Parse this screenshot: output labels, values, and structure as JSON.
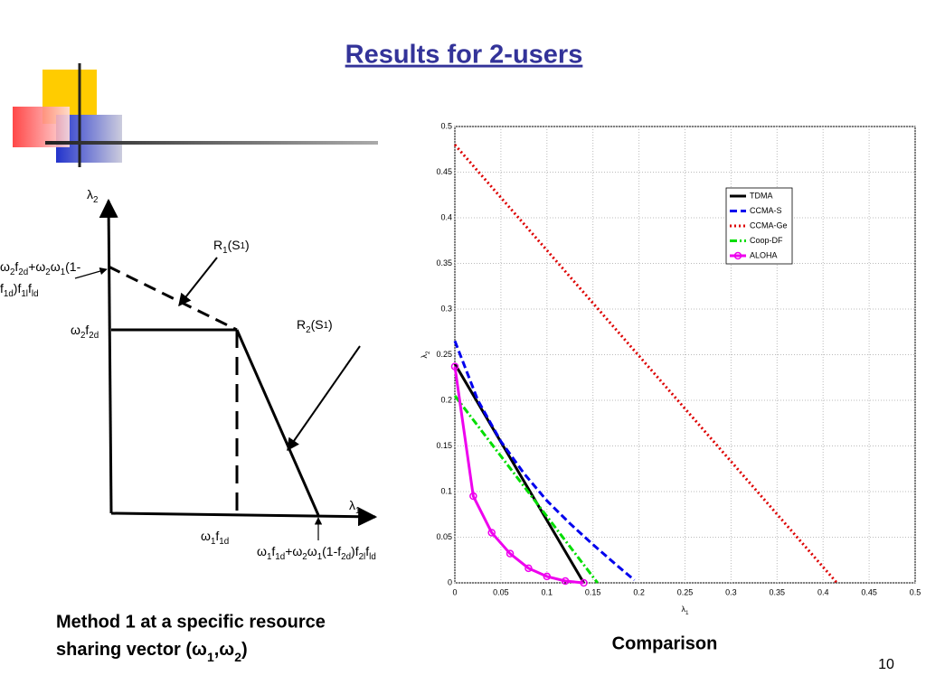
{
  "title": "Results for 2-users",
  "diagram": {
    "labels": [
      [
        "λ",
        {
          "sub": "2"
        }
      ],
      [
        "λ",
        {
          "sub": "1"
        }
      ],
      [
        "R",
        {
          "sub": "1"
        },
        "(S",
        {
          "sup": "1"
        },
        ")"
      ],
      [
        "R",
        {
          "sub": "2"
        },
        "(S",
        {
          "sup": "1"
        },
        ")"
      ],
      [
        "ω",
        {
          "sub": "2"
        },
        "f",
        {
          "sub": "2d"
        },
        "+ω",
        {
          "sub": "2"
        },
        "ω",
        {
          "sub": "1"
        },
        "(1-"
      ],
      [
        "f",
        {
          "sub": "1d"
        },
        ")f",
        {
          "sub": "1l"
        },
        "f",
        {
          "sub": "ld"
        }
      ],
      [
        "ω",
        {
          "sub": "2"
        },
        "f",
        {
          "sub": "2d"
        }
      ],
      [
        "ω",
        {
          "sub": "1"
        },
        "f",
        {
          "sub": "1d"
        }
      ],
      [
        "ω",
        {
          "sub": "1"
        },
        "f",
        {
          "sub": "1d"
        },
        "+ω",
        {
          "sub": "2"
        },
        "ω",
        {
          "sub": "1"
        },
        "(1-f",
        {
          "sub": "2d"
        },
        ")f",
        {
          "sub": "2l"
        },
        "f",
        {
          "sub": "ld"
        }
      ]
    ]
  },
  "caption_left": [
    "Method 1 at a specific resource",
    [
      "sharing vector (ω",
      {
        "sub": "1"
      },
      ",ω",
      {
        "sub": "2"
      },
      ")"
    ]
  ],
  "chart_data": {
    "type": "line",
    "xlabel": [
      "λ",
      {
        "sub": "1"
      }
    ],
    "ylabel": [
      "λ",
      {
        "sub": "2"
      }
    ],
    "xlim": [
      0,
      0.5
    ],
    "ylim": [
      0,
      0.5
    ],
    "xticks": [
      0,
      0.05,
      0.1,
      0.15,
      0.2,
      0.25,
      0.3,
      0.35,
      0.4,
      0.45,
      0.5
    ],
    "yticks": [
      0,
      0.05,
      0.1,
      0.15,
      0.2,
      0.25,
      0.3,
      0.35,
      0.4,
      0.45,
      0.5
    ],
    "grid": true,
    "legend": "upper right",
    "series": [
      {
        "name": "TDMA",
        "color": "#000000",
        "dash": "solid",
        "x": [
          0,
          0.14
        ],
        "values": [
          0.24,
          0
        ]
      },
      {
        "name": "CCMA-S",
        "color": "#0000ee",
        "dash": "dashed",
        "x": [
          0,
          0.025,
          0.05,
          0.075,
          0.1,
          0.125,
          0.15,
          0.175,
          0.195
        ],
        "values": [
          0.265,
          0.2,
          0.155,
          0.12,
          0.09,
          0.065,
          0.042,
          0.02,
          0.003
        ]
      },
      {
        "name": "CCMA-Ge",
        "color": "#dd0000",
        "dash": "dotted",
        "x": [
          0,
          0.415
        ],
        "values": [
          0.48,
          0
        ]
      },
      {
        "name": "Coop-DF",
        "color": "#00dd00",
        "dash": "dashdot",
        "x": [
          0,
          0.155
        ],
        "values": [
          0.205,
          0
        ]
      },
      {
        "name": "ALOHA",
        "color": "#ee00ee",
        "dash": "solid",
        "marker": "circle",
        "x": [
          0,
          0.02,
          0.04,
          0.06,
          0.08,
          0.1,
          0.12,
          0.14
        ],
        "values": [
          0.237,
          0.095,
          0.055,
          0.032,
          0.016,
          0.007,
          0.002,
          0
        ]
      }
    ]
  },
  "caption_right": "Comparison",
  "page_number": "10"
}
